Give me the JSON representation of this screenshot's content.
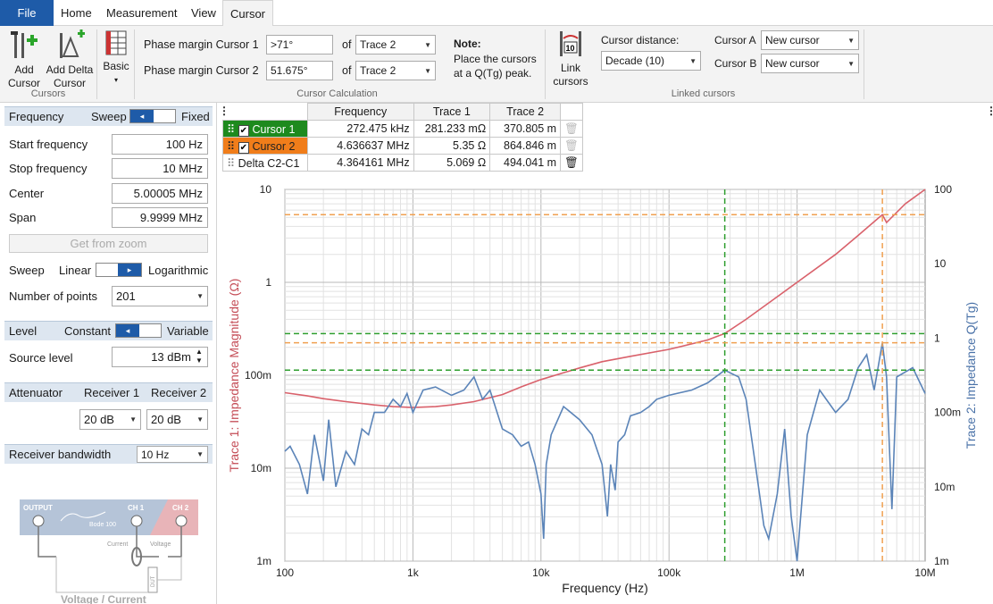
{
  "menu": {
    "file": "File",
    "tabs": [
      "Home",
      "Measurement",
      "View",
      "Cursor"
    ]
  },
  "ribbon": {
    "add_cursor": [
      "Add",
      "Cursor"
    ],
    "add_delta": [
      "Add Delta",
      "Cursor"
    ],
    "basic": "Basic",
    "cursors_group": "Cursors",
    "pm1_label": "Phase margin Cursor 1",
    "pm1_value": ">71°",
    "pm2_label": "Phase margin Cursor 2",
    "pm2_value": "51.675°",
    "of": "of",
    "trace1": "Trace 2",
    "trace2": "Trace 2",
    "note_title": "Note:",
    "note_text": [
      "Place the cursors",
      "at a Q(Tg) peak."
    ],
    "calc_group": "Cursor Calculation",
    "link": [
      "Link",
      "cursors"
    ],
    "dist_label": "Cursor distance:",
    "dist_value": "Decade (10)",
    "ca_label": "Cursor A",
    "ca_value": "New cursor",
    "cb_label": "Cursor B",
    "cb_value": "New cursor",
    "linked_group": "Linked cursors"
  },
  "left": {
    "freq_hdr": "Frequency",
    "sweep_lbl": "Sweep",
    "fixed_lbl": "Fixed",
    "start_lbl": "Start frequency",
    "start_val": "100 Hz",
    "stop_lbl": "Stop frequency",
    "stop_val": "10 MHz",
    "center_lbl": "Center",
    "center_val": "5.00005 MHz",
    "span_lbl": "Span",
    "span_val": "9.9999 MHz",
    "zoom_btn": "Get from zoom",
    "sweep2_lbl": "Sweep",
    "linear": "Linear",
    "log": "Logarithmic",
    "npts_lbl": "Number of points",
    "npts_val": "201",
    "level_hdr": "Level",
    "constant": "Constant",
    "variable": "Variable",
    "src_lbl": "Source level",
    "src_val": "13 dBm",
    "att_hdr": "Attenuator",
    "rx1": "Receiver 1",
    "rx2": "Receiver 2",
    "att1": "20 dB",
    "att2": "20 dB",
    "bw_hdr": "Receiver bandwidth",
    "bw_val": "10 Hz",
    "diagram": {
      "output": "OUTPUT",
      "ch1": "CH 1",
      "ch2": "CH 2",
      "bode": "Bode 100",
      "current": "Current",
      "voltage": "Voltage",
      "dut": "DUT",
      "caption": "Voltage / Current"
    }
  },
  "table": {
    "headers": [
      "Frequency",
      "Trace 1",
      "Trace 2"
    ],
    "rows": [
      {
        "name": "Cursor 1",
        "freq": "272.475 kHz",
        "t1": "281.233 mΩ",
        "t2": "370.805 m",
        "color": "#1e8a1e"
      },
      {
        "name": "Cursor 2",
        "freq": "4.636637 MHz",
        "t1": "5.35 Ω",
        "t2": "864.846 m",
        "color": "#f07d1a"
      },
      {
        "name": "Delta C2-C1",
        "freq": "4.364161 MHz",
        "t1": "5.069 Ω",
        "t2": "494.041 m",
        "color": ""
      }
    ]
  },
  "chart_data": {
    "type": "line",
    "xlabel": "Frequency (Hz)",
    "ylabel_left": "Trace 1: Impedance Magnitude (Ω)",
    "ylabel_right": "Trace 2: Impedance Q(Tg)",
    "x_scale": "log",
    "xlim": [
      100,
      10000000
    ],
    "y1_scale": "log",
    "y1lim": [
      0.001,
      10
    ],
    "y2_scale": "log",
    "y2lim": [
      0.001,
      100
    ],
    "x_ticks": [
      "100",
      "1k",
      "10k",
      "100k",
      "1M",
      "10M"
    ],
    "y1_ticks": [
      "1m",
      "10m",
      "100m",
      "1",
      "10"
    ],
    "y2_ticks": [
      "1m",
      "10m",
      "100m",
      "1",
      "10",
      "100"
    ],
    "colors": {
      "trace1": "#d9616b",
      "trace2": "#5b84b8",
      "cursor1": "#2e9e2e",
      "cursor2": "#f0a050"
    },
    "cursors": [
      {
        "name": "Cursor 1",
        "x": 272475,
        "y1": 0.281,
        "y2": 0.371
      },
      {
        "name": "Cursor 2",
        "x": 4636637,
        "y1": 5.35,
        "y2": 0.865
      }
    ],
    "series": [
      {
        "name": "Trace 1",
        "axis": "left",
        "x": [
          100,
          150,
          200,
          300,
          500,
          700,
          1000,
          1500,
          2000,
          3000,
          5000,
          7000,
          10000,
          20000,
          30000,
          50000,
          100000,
          200000,
          272475,
          400000,
          700000,
          1000000,
          2000000,
          3000000,
          4000000,
          4636637,
          5000000,
          7000000,
          10000000
        ],
        "y": [
          0.065,
          0.06,
          0.056,
          0.052,
          0.048,
          0.046,
          0.045,
          0.046,
          0.048,
          0.052,
          0.062,
          0.075,
          0.09,
          0.12,
          0.14,
          0.16,
          0.19,
          0.24,
          0.281,
          0.4,
          0.7,
          1.0,
          2.0,
          3.2,
          4.5,
          5.35,
          4.4,
          7.0,
          10.0
        ]
      },
      {
        "name": "Trace 2",
        "axis": "right",
        "x": [
          100,
          110,
          130,
          150,
          170,
          200,
          220,
          250,
          300,
          350,
          400,
          450,
          500,
          600,
          700,
          800,
          900,
          1000,
          1200,
          1500,
          2000,
          2500,
          3000,
          3500,
          4000,
          5000,
          6000,
          7000,
          8000,
          9000,
          10000,
          10500,
          11000,
          12000,
          15000,
          20000,
          25000,
          30000,
          33000,
          35000,
          38000,
          40000,
          45000,
          50000,
          60000,
          70000,
          80000,
          100000,
          150000,
          200000,
          272475,
          350000,
          400000,
          500000,
          550000,
          600000,
          700000,
          800000,
          900000,
          1000000,
          1200000,
          1500000,
          2000000,
          2500000,
          3000000,
          3500000,
          4000000,
          4636637,
          5000000,
          5500000,
          6000000,
          7000000,
          8000000,
          10000000
        ],
        "y": [
          0.03,
          0.035,
          0.02,
          0.008,
          0.05,
          0.012,
          0.08,
          0.01,
          0.03,
          0.02,
          0.06,
          0.05,
          0.1,
          0.1,
          0.15,
          0.12,
          0.18,
          0.1,
          0.2,
          0.22,
          0.17,
          0.2,
          0.3,
          0.15,
          0.2,
          0.06,
          0.05,
          0.035,
          0.04,
          0.02,
          0.008,
          0.002,
          0.02,
          0.05,
          0.12,
          0.08,
          0.05,
          0.02,
          0.004,
          0.02,
          0.009,
          0.04,
          0.05,
          0.09,
          0.1,
          0.12,
          0.15,
          0.17,
          0.2,
          0.25,
          0.37,
          0.3,
          0.15,
          0.01,
          0.003,
          0.002,
          0.008,
          0.06,
          0.004,
          0.001,
          0.05,
          0.2,
          0.1,
          0.15,
          0.4,
          0.6,
          0.2,
          0.865,
          0.3,
          0.005,
          0.3,
          0.35,
          0.4,
          0.18
        ]
      }
    ]
  }
}
